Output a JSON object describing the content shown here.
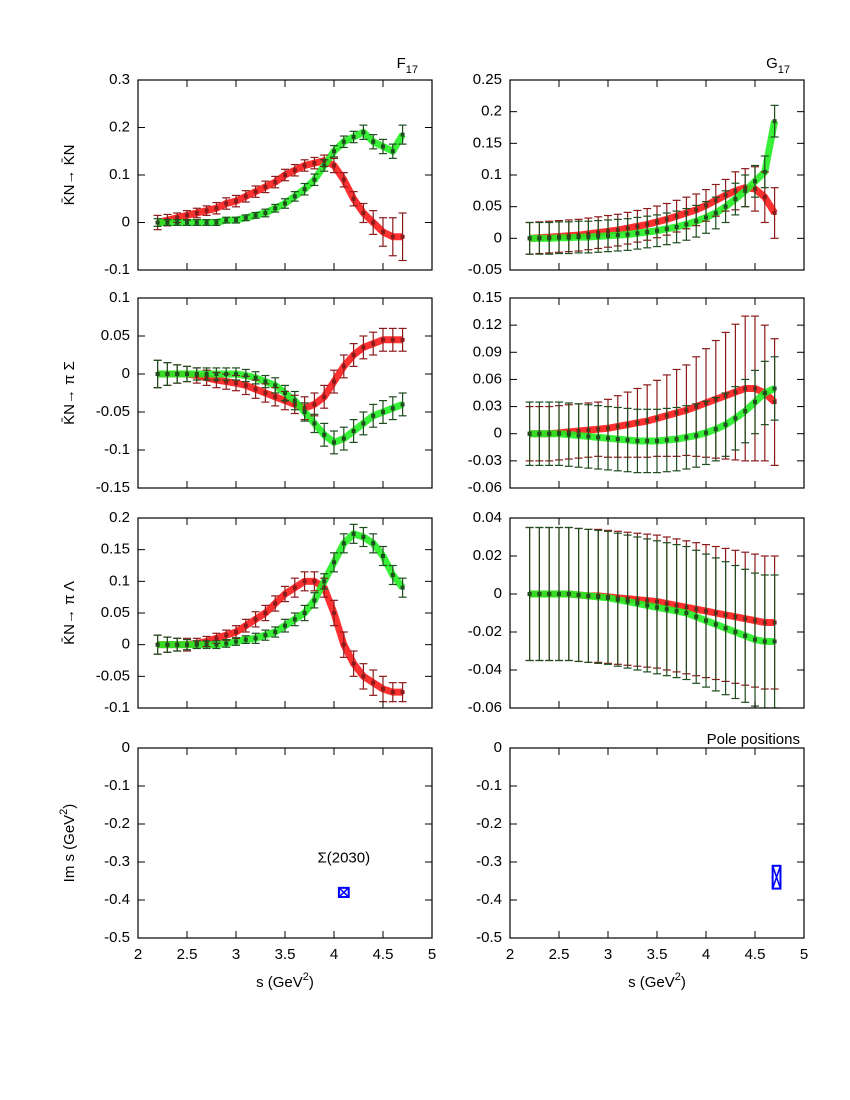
{
  "chart_data": [
    {
      "type": "errorbar",
      "title": [
        "F",
        "17"
      ],
      "ylabel": [
        "K̄N→ K̄N"
      ],
      "x": [
        2.2,
        2.3,
        2.4,
        2.5,
        2.6,
        2.7,
        2.8,
        2.9,
        3.0,
        3.1,
        3.2,
        3.3,
        3.4,
        3.5,
        3.6,
        3.7,
        3.8,
        3.9,
        4.0,
        4.1,
        4.2,
        4.3,
        4.4,
        4.5,
        4.6,
        4.7
      ],
      "xlim": [
        2,
        5
      ],
      "xticks": [
        2,
        2.5,
        3,
        3.5,
        4,
        4.5,
        5
      ],
      "ylim": [
        -0.1,
        0.3
      ],
      "yticks": [
        -0.1,
        0,
        0.1,
        0.2,
        0.3
      ],
      "series": [
        {
          "color": "#8b1a1a",
          "band_color": "#ff1a1a",
          "values": [
            0,
            0.005,
            0.01,
            0.015,
            0.02,
            0.025,
            0.03,
            0.04,
            0.045,
            0.055,
            0.065,
            0.075,
            0.085,
            0.1,
            0.11,
            0.12,
            0.125,
            0.13,
            0.12,
            0.09,
            0.05,
            0.02,
            0,
            -0.02,
            -0.03,
            -0.03
          ],
          "errors": [
            0.015,
            0.012,
            0.01,
            0.01,
            0.01,
            0.01,
            0.012,
            0.012,
            0.012,
            0.012,
            0.012,
            0.012,
            0.012,
            0.012,
            0.012,
            0.012,
            0.012,
            0.012,
            0.015,
            0.015,
            0.015,
            0.02,
            0.025,
            0.03,
            0.04,
            0.05
          ]
        },
        {
          "color": "#1e4d1e",
          "band_color": "#22ee22",
          "values": [
            0,
            0,
            0,
            0,
            0,
            0,
            0,
            0.005,
            0.005,
            0.01,
            0.015,
            0.02,
            0.03,
            0.04,
            0.055,
            0.07,
            0.09,
            0.12,
            0.15,
            0.17,
            0.18,
            0.19,
            0.17,
            0.16,
            0.15,
            0.185
          ],
          "errors": [
            0.008,
            0.006,
            0.006,
            0.006,
            0.006,
            0.006,
            0.006,
            0.006,
            0.006,
            0.006,
            0.006,
            0.008,
            0.008,
            0.01,
            0.01,
            0.012,
            0.012,
            0.012,
            0.012,
            0.012,
            0.012,
            0.015,
            0.015,
            0.015,
            0.015,
            0.02
          ]
        }
      ]
    },
    {
      "type": "errorbar",
      "title": [
        "G",
        "17"
      ],
      "x": [
        2.2,
        2.3,
        2.4,
        2.5,
        2.6,
        2.7,
        2.8,
        2.9,
        3.0,
        3.1,
        3.2,
        3.3,
        3.4,
        3.5,
        3.6,
        3.7,
        3.8,
        3.9,
        4.0,
        4.1,
        4.2,
        4.3,
        4.4,
        4.5,
        4.6,
        4.7
      ],
      "xlim": [
        2,
        5
      ],
      "xticks": [
        2,
        2.5,
        3,
        3.5,
        4,
        4.5,
        5
      ],
      "ylim": [
        -0.05,
        0.25
      ],
      "yticks": [
        -0.05,
        0,
        0.05,
        0.1,
        0.15,
        0.2,
        0.25
      ],
      "series": [
        {
          "color": "#8b1a1a",
          "band_color": "#ff1a1a",
          "values": [
            0,
            0.001,
            0.002,
            0.003,
            0.004,
            0.005,
            0.007,
            0.009,
            0.011,
            0.013,
            0.016,
            0.019,
            0.022,
            0.026,
            0.03,
            0.035,
            0.04,
            0.045,
            0.052,
            0.06,
            0.068,
            0.075,
            0.08,
            0.078,
            0.065,
            0.04
          ],
          "errors": [
            0.025,
            0.025,
            0.025,
            0.025,
            0.025,
            0.025,
            0.025,
            0.025,
            0.025,
            0.025,
            0.025,
            0.025,
            0.025,
            0.025,
            0.025,
            0.025,
            0.025,
            0.025,
            0.025,
            0.025,
            0.025,
            0.03,
            0.03,
            0.035,
            0.04,
            0.04
          ]
        },
        {
          "color": "#1e4d1e",
          "band_color": "#22ee22",
          "values": [
            0,
            0,
            0,
            0.001,
            0.001,
            0.002,
            0.002,
            0.003,
            0.004,
            0.005,
            0.006,
            0.008,
            0.01,
            0.012,
            0.015,
            0.018,
            0.022,
            0.027,
            0.033,
            0.04,
            0.05,
            0.062,
            0.075,
            0.09,
            0.105,
            0.185
          ],
          "errors": [
            0.025,
            0.025,
            0.025,
            0.025,
            0.025,
            0.025,
            0.025,
            0.025,
            0.025,
            0.025,
            0.025,
            0.025,
            0.025,
            0.025,
            0.025,
            0.025,
            0.025,
            0.025,
            0.025,
            0.025,
            0.025,
            0.025,
            0.025,
            0.025,
            0.025,
            0.025
          ]
        }
      ]
    },
    {
      "type": "errorbar",
      "ylabel": [
        "K̄N→ π Σ"
      ],
      "x": [
        2.2,
        2.3,
        2.4,
        2.5,
        2.6,
        2.7,
        2.8,
        2.9,
        3.0,
        3.1,
        3.2,
        3.3,
        3.4,
        3.5,
        3.6,
        3.7,
        3.8,
        3.9,
        4.0,
        4.1,
        4.2,
        4.3,
        4.4,
        4.5,
        4.6,
        4.7
      ],
      "xlim": [
        2,
        5
      ],
      "xticks": [
        2,
        2.5,
        3,
        3.5,
        4,
        4.5,
        5
      ],
      "ylim": [
        -0.15,
        0.1
      ],
      "yticks": [
        -0.15,
        -0.1,
        -0.05,
        0,
        0.05,
        0.1
      ],
      "series": [
        {
          "color": "#8b1a1a",
          "band_color": "#ff1a1a",
          "values": [
            0,
            0,
            0,
            0,
            -0.002,
            -0.005,
            -0.008,
            -0.01,
            -0.012,
            -0.015,
            -0.02,
            -0.025,
            -0.03,
            -0.035,
            -0.04,
            -0.045,
            -0.04,
            -0.03,
            -0.01,
            0.01,
            0.025,
            0.035,
            0.04,
            0.045,
            0.045,
            0.045
          ],
          "errors": [
            0.018,
            0.015,
            0.012,
            0.01,
            0.01,
            0.01,
            0.01,
            0.01,
            0.01,
            0.012,
            0.012,
            0.012,
            0.012,
            0.012,
            0.012,
            0.015,
            0.015,
            0.015,
            0.015,
            0.015,
            0.015,
            0.015,
            0.015,
            0.015,
            0.015,
            0.015
          ]
        },
        {
          "color": "#1e4d1e",
          "band_color": "#22ee22",
          "values": [
            0,
            0,
            0,
            0,
            0,
            0,
            0,
            0,
            0,
            -0.002,
            -0.005,
            -0.01,
            -0.015,
            -0.025,
            -0.035,
            -0.05,
            -0.065,
            -0.08,
            -0.09,
            -0.085,
            -0.075,
            -0.065,
            -0.055,
            -0.05,
            -0.045,
            -0.04
          ],
          "errors": [
            0.018,
            0.015,
            0.012,
            0.01,
            0.008,
            0.008,
            0.008,
            0.008,
            0.008,
            0.008,
            0.008,
            0.008,
            0.01,
            0.01,
            0.012,
            0.012,
            0.012,
            0.015,
            0.015,
            0.015,
            0.015,
            0.015,
            0.015,
            0.015,
            0.015,
            0.015
          ]
        }
      ]
    },
    {
      "type": "errorbar",
      "x": [
        2.2,
        2.3,
        2.4,
        2.5,
        2.6,
        2.7,
        2.8,
        2.9,
        3.0,
        3.1,
        3.2,
        3.3,
        3.4,
        3.5,
        3.6,
        3.7,
        3.8,
        3.9,
        4.0,
        4.1,
        4.2,
        4.3,
        4.4,
        4.5,
        4.6,
        4.7
      ],
      "xlim": [
        2,
        5
      ],
      "xticks": [
        2,
        2.5,
        3,
        3.5,
        4,
        4.5,
        5
      ],
      "ylim": [
        -0.06,
        0.15
      ],
      "yticks": [
        -0.06,
        -0.03,
        0,
        0.03,
        0.06,
        0.09,
        0.12,
        0.15
      ],
      "series": [
        {
          "color": "#8b1a1a",
          "band_color": "#ff1a1a",
          "values": [
            0,
            0,
            0,
            0.001,
            0.002,
            0.003,
            0.004,
            0.005,
            0.006,
            0.008,
            0.01,
            0.012,
            0.014,
            0.017,
            0.02,
            0.023,
            0.026,
            0.03,
            0.034,
            0.038,
            0.042,
            0.046,
            0.05,
            0.05,
            0.045,
            0.035
          ],
          "errors": [
            0.03,
            0.03,
            0.03,
            0.03,
            0.03,
            0.03,
            0.03,
            0.03,
            0.032,
            0.034,
            0.036,
            0.038,
            0.04,
            0.042,
            0.045,
            0.048,
            0.05,
            0.055,
            0.06,
            0.065,
            0.07,
            0.075,
            0.08,
            0.08,
            0.075,
            0.07
          ]
        },
        {
          "color": "#1e4d1e",
          "band_color": "#22ee22",
          "values": [
            0,
            0,
            0,
            0,
            -0.001,
            -0.002,
            -0.003,
            -0.004,
            -0.005,
            -0.006,
            -0.007,
            -0.008,
            -0.008,
            -0.008,
            -0.007,
            -0.006,
            -0.004,
            -0.002,
            0.001,
            0.005,
            0.01,
            0.017,
            0.025,
            0.035,
            0.045,
            0.05
          ],
          "errors": [
            0.035,
            0.035,
            0.035,
            0.035,
            0.035,
            0.035,
            0.035,
            0.035,
            0.035,
            0.035,
            0.035,
            0.035,
            0.035,
            0.035,
            0.035,
            0.035,
            0.035,
            0.035,
            0.035,
            0.035,
            0.035,
            0.035,
            0.035,
            0.035,
            0.035,
            0.035
          ]
        }
      ]
    },
    {
      "type": "errorbar",
      "ylabel": [
        "K̄N→ π Λ"
      ],
      "x": [
        2.2,
        2.3,
        2.4,
        2.5,
        2.6,
        2.7,
        2.8,
        2.9,
        3.0,
        3.1,
        3.2,
        3.3,
        3.4,
        3.5,
        3.6,
        3.7,
        3.8,
        3.9,
        4.0,
        4.1,
        4.2,
        4.3,
        4.4,
        4.5,
        4.6,
        4.7
      ],
      "xlim": [
        2,
        5
      ],
      "xticks": [
        2,
        2.5,
        3,
        3.5,
        4,
        4.5,
        5
      ],
      "ylim": [
        -0.1,
        0.2
      ],
      "yticks": [
        -0.1,
        -0.05,
        0,
        0.05,
        0.1,
        0.15,
        0.2
      ],
      "series": [
        {
          "color": "#8b1a1a",
          "band_color": "#ff1a1a",
          "values": [
            0,
            0,
            0,
            0,
            0.002,
            0.005,
            0.01,
            0.015,
            0.02,
            0.03,
            0.04,
            0.05,
            0.065,
            0.08,
            0.09,
            0.1,
            0.1,
            0.09,
            0.05,
            0,
            -0.03,
            -0.05,
            -0.06,
            -0.07,
            -0.075,
            -0.075
          ],
          "errors": [
            0.015,
            0.012,
            0.01,
            0.01,
            0.008,
            0.008,
            0.008,
            0.008,
            0.01,
            0.01,
            0.012,
            0.012,
            0.012,
            0.012,
            0.015,
            0.015,
            0.015,
            0.015,
            0.02,
            0.02,
            0.02,
            0.02,
            0.02,
            0.02,
            0.015,
            0.015
          ]
        },
        {
          "color": "#1e4d1e",
          "band_color": "#22ee22",
          "values": [
            0,
            0,
            0,
            0,
            0,
            0,
            0,
            0.002,
            0.005,
            0.008,
            0.01,
            0.015,
            0.02,
            0.03,
            0.04,
            0.05,
            0.07,
            0.1,
            0.13,
            0.16,
            0.175,
            0.17,
            0.16,
            0.14,
            0.11,
            0.09
          ],
          "errors": [
            0.015,
            0.012,
            0.01,
            0.008,
            0.006,
            0.006,
            0.006,
            0.006,
            0.006,
            0.006,
            0.008,
            0.008,
            0.008,
            0.01,
            0.01,
            0.012,
            0.012,
            0.012,
            0.015,
            0.015,
            0.015,
            0.015,
            0.015,
            0.015,
            0.015,
            0.015
          ]
        }
      ]
    },
    {
      "type": "errorbar",
      "x": [
        2.2,
        2.3,
        2.4,
        2.5,
        2.6,
        2.7,
        2.8,
        2.9,
        3.0,
        3.1,
        3.2,
        3.3,
        3.4,
        3.5,
        3.6,
        3.7,
        3.8,
        3.9,
        4.0,
        4.1,
        4.2,
        4.3,
        4.4,
        4.5,
        4.6,
        4.7
      ],
      "xlim": [
        2,
        5
      ],
      "xticks": [
        2,
        2.5,
        3,
        3.5,
        4,
        4.5,
        5
      ],
      "ylim": [
        -0.06,
        0.04
      ],
      "yticks": [
        -0.06,
        -0.04,
        -0.02,
        0,
        0.02,
        0.04
      ],
      "series": [
        {
          "color": "#8b1a1a",
          "band_color": "#ff1a1a",
          "values": [
            0,
            0,
            0,
            0,
            0,
            -0.0005,
            -0.001,
            -0.001,
            -0.0015,
            -0.002,
            -0.0025,
            -0.003,
            -0.0035,
            -0.004,
            -0.005,
            -0.006,
            -0.007,
            -0.008,
            -0.009,
            -0.01,
            -0.011,
            -0.012,
            -0.013,
            -0.014,
            -0.015,
            -0.015
          ],
          "errors": [
            0.035,
            0.035,
            0.035,
            0.035,
            0.035,
            0.035,
            0.035,
            0.035,
            0.035,
            0.035,
            0.035,
            0.035,
            0.035,
            0.035,
            0.035,
            0.035,
            0.035,
            0.035,
            0.035,
            0.035,
            0.035,
            0.035,
            0.035,
            0.035,
            0.035,
            0.035
          ]
        },
        {
          "color": "#1e4d1e",
          "band_color": "#22ee22",
          "values": [
            0,
            0,
            0,
            0,
            0,
            -0.0005,
            -0.001,
            -0.0015,
            -0.002,
            -0.003,
            -0.004,
            -0.005,
            -0.006,
            -0.007,
            -0.008,
            -0.009,
            -0.01,
            -0.012,
            -0.014,
            -0.016,
            -0.018,
            -0.02,
            -0.022,
            -0.024,
            -0.025,
            -0.025
          ],
          "errors": [
            0.035,
            0.035,
            0.035,
            0.035,
            0.035,
            0.035,
            0.035,
            0.035,
            0.035,
            0.035,
            0.035,
            0.035,
            0.035,
            0.035,
            0.035,
            0.035,
            0.035,
            0.035,
            0.035,
            0.035,
            0.035,
            0.035,
            0.035,
            0.035,
            0.035,
            0.035
          ]
        }
      ]
    },
    {
      "type": "pole",
      "ylabel": [
        "Im s (GeV",
        "2",
        ")"
      ],
      "xlabel": [
        "s (GeV",
        "2",
        ")"
      ],
      "annotation": "Σ(2030)",
      "x": [
        4.1
      ],
      "xlim": [
        2,
        5
      ],
      "xticks": [
        2,
        2.5,
        3,
        3.5,
        4,
        4.5,
        5
      ],
      "ylim": [
        -0.5,
        0
      ],
      "yticks": [
        -0.5,
        -0.4,
        -0.3,
        -0.2,
        -0.1,
        0
      ],
      "series": [
        {
          "color": "#0000ff",
          "values": [
            -0.38
          ],
          "errors": [
            0.012
          ],
          "x_errors": [
            0.05
          ]
        }
      ]
    },
    {
      "type": "pole",
      "xlabel": [
        "s (GeV",
        "2",
        ")"
      ],
      "subtitle": "Pole positions",
      "x": [
        4.72
      ],
      "xlim": [
        2,
        5
      ],
      "xticks": [
        2,
        2.5,
        3,
        3.5,
        4,
        4.5,
        5
      ],
      "ylim": [
        -0.5,
        0
      ],
      "yticks": [
        -0.5,
        -0.4,
        -0.3,
        -0.2,
        -0.1,
        0
      ],
      "series": [
        {
          "color": "#0000ff",
          "values": [
            -0.34
          ],
          "errors": [
            0.03
          ],
          "x_errors": [
            0.04
          ]
        }
      ]
    }
  ]
}
